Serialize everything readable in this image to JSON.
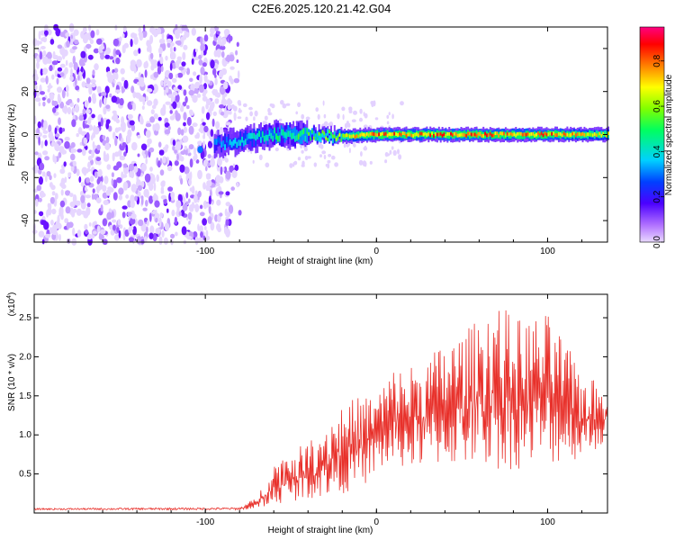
{
  "title": "C2E6.2025.120.21.42.G04",
  "colors": {
    "spectrogram_low": "#b070ff",
    "spectrogram_high": "#ff0000",
    "snr_line": "#e8302a",
    "axes": "#000000"
  },
  "chart_data": [
    {
      "type": "heatmap",
      "name_ref": "spectrogram",
      "xlabel": "Height of straight line (km)",
      "ylabel": "Frequency (Hz)",
      "xlim": [
        -200,
        135
      ],
      "ylim": [
        -50,
        50
      ],
      "xticks": [
        -100,
        0,
        100
      ],
      "xtick_labels": [
        "-100",
        "0",
        "100"
      ],
      "yticks": [
        -40,
        -20,
        0,
        20,
        40
      ],
      "ytick_labels": [
        "-40",
        "-20",
        "0",
        "20",
        "40"
      ],
      "colorbar": {
        "label": "Normalized spectral amplitude",
        "range": [
          0.0,
          0.95
        ],
        "ticks": [
          0.0,
          0.2,
          0.4,
          0.6,
          0.8
        ],
        "tick_labels": [
          "0.0",
          "0.2",
          "0.4",
          "0.6",
          "0.8"
        ],
        "colormap": "rainbow (violet→blue→cyan→green→yellow→red→magenta)"
      },
      "ridge": {
        "x": [
          -100,
          -80,
          -60,
          -40,
          -20,
          0,
          20,
          40,
          60,
          80,
          100,
          120,
          135
        ],
        "frequency": [
          -5,
          -3,
          0,
          0,
          -1,
          0,
          0,
          0,
          0,
          0,
          0,
          0,
          0
        ],
        "peak_amplitude": [
          0.3,
          0.4,
          0.5,
          0.55,
          0.7,
          0.85,
          0.8,
          0.85,
          0.85,
          0.8,
          0.85,
          0.75,
          0.7
        ]
      },
      "noise_region_x": [
        -200,
        -85
      ],
      "noise_amplitude": 0.05
    },
    {
      "type": "line",
      "name_ref": "snr",
      "xlabel": "Height of straight line (km)",
      "ylabel": "SNR (10 * v/v)",
      "multiplier_label": "(x10",
      "multiplier_exp": "4",
      "multiplier_close": ")",
      "xlim": [
        -200,
        135
      ],
      "ylim": [
        0,
        2.8
      ],
      "xticks": [
        -100,
        0,
        100
      ],
      "xtick_labels": [
        "-100",
        "0",
        "100"
      ],
      "yticks": [
        0.5,
        1.0,
        1.5,
        2.0,
        2.5
      ],
      "ytick_labels": [
        "0.5",
        "1.0",
        "1.5",
        "2.0",
        "2.5"
      ],
      "envelope": {
        "x": [
          -200,
          -80,
          -70,
          -60,
          -50,
          -40,
          -30,
          -20,
          -10,
          0,
          10,
          20,
          30,
          40,
          50,
          60,
          70,
          80,
          90,
          100,
          110,
          120,
          135
        ],
        "baseline": [
          0.04,
          0.04,
          0.05,
          0.1,
          0.15,
          0.18,
          0.2,
          0.25,
          0.3,
          0.5,
          0.6,
          0.55,
          0.6,
          0.6,
          0.6,
          0.6,
          0.55,
          0.55,
          0.6,
          0.6,
          0.65,
          0.7,
          0.9
        ],
        "peak": [
          0.06,
          0.07,
          0.2,
          0.65,
          0.8,
          0.9,
          1.15,
          1.4,
          1.5,
          1.55,
          1.85,
          1.9,
          2.0,
          2.2,
          2.3,
          2.5,
          2.75,
          2.5,
          2.5,
          2.55,
          2.2,
          1.8,
          1.6
        ]
      }
    }
  ]
}
